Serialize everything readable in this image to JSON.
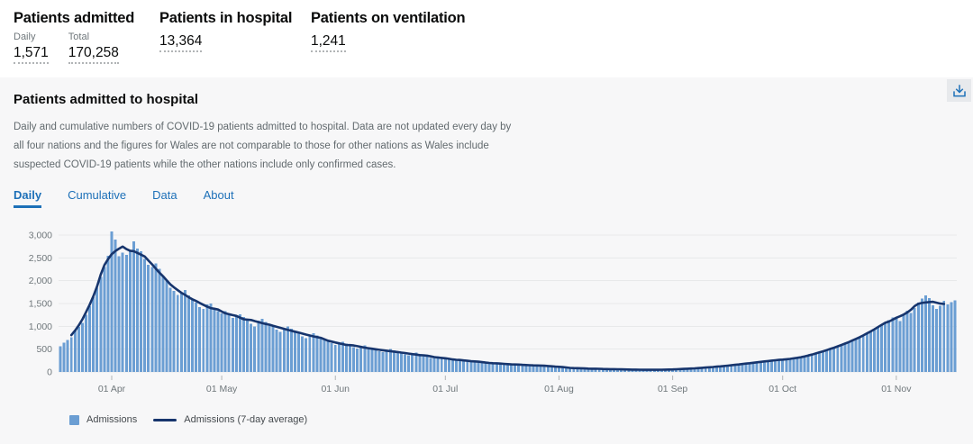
{
  "summary": {
    "stats": [
      {
        "title": "Patients admitted",
        "items": [
          {
            "label": "Daily",
            "value": "1,571"
          },
          {
            "label": "Total",
            "value": "170,258"
          }
        ]
      },
      {
        "title": "Patients in hospital",
        "items": [
          {
            "label": "",
            "value": "13,364"
          }
        ]
      },
      {
        "title": "Patients on ventilation",
        "items": [
          {
            "label": "",
            "value": "1,241"
          }
        ]
      }
    ]
  },
  "card": {
    "title": "Patients admitted to hospital",
    "description": "Daily and cumulative numbers of COVID-19 patients admitted to hospital. Data are not updated every day by all four nations and the figures for Wales are not comparable to those for other nations as Wales include suspected COVID-19 patients while the other nations include only confirmed cases.",
    "tabs": [
      {
        "label": "Daily",
        "active": true
      },
      {
        "label": "Cumulative",
        "active": false
      },
      {
        "label": "Data",
        "active": false
      },
      {
        "label": "About",
        "active": false
      }
    ],
    "download_icon": "download-icon"
  },
  "colors": {
    "accent_blue": "#1d70b8",
    "bar": "#6b9ed3",
    "line": "#17356d",
    "grid": "#e8e9ea",
    "axis_text": "#6f777b",
    "card_bg": "#f7f7f8"
  },
  "chart_data": {
    "type": "bar",
    "title": "Patients admitted to hospital (Daily)",
    "note": "Daily admissions bars from mid-March to mid-November with a 7-day average line overlay; values estimated from gridlines.",
    "legend": [
      "Admissions",
      "Admissions (7-day average)"
    ],
    "ylim": [
      0,
      3000
    ],
    "y_ticks": [
      {
        "value": 0,
        "label": "0"
      },
      {
        "value": 500,
        "label": "500"
      },
      {
        "value": 1000,
        "label": "1,000"
      },
      {
        "value": 1500,
        "label": "1,500"
      },
      {
        "value": 2000,
        "label": "2,000"
      },
      {
        "value": 2500,
        "label": "2,500"
      },
      {
        "value": 3000,
        "label": "3,000"
      }
    ],
    "x_ticks": [
      {
        "index": 14,
        "label": "01 Apr"
      },
      {
        "index": 44,
        "label": "01 May"
      },
      {
        "index": 75,
        "label": "01 Jun"
      },
      {
        "index": 105,
        "label": "01 Jul"
      },
      {
        "index": 136,
        "label": "01 Aug"
      },
      {
        "index": 167,
        "label": "01 Sep"
      },
      {
        "index": 197,
        "label": "01 Oct"
      },
      {
        "index": 228,
        "label": "01 Nov"
      }
    ],
    "series": [
      {
        "name": "Admissions",
        "type": "bar",
        "values": [
          560,
          640,
          700,
          760,
          920,
          990,
          1080,
          1250,
          1440,
          1640,
          1850,
          2080,
          2300,
          2550,
          3080,
          2900,
          2540,
          2620,
          2570,
          2660,
          2860,
          2700,
          2640,
          2480,
          2350,
          2300,
          2380,
          2260,
          2100,
          2000,
          1850,
          1780,
          1690,
          1750,
          1800,
          1680,
          1600,
          1520,
          1420,
          1380,
          1480,
          1500,
          1400,
          1330,
          1280,
          1330,
          1250,
          1180,
          1220,
          1260,
          1200,
          1160,
          1060,
          1000,
          1130,
          1160,
          1100,
          1050,
          1000,
          930,
          880,
          960,
          1000,
          950,
          900,
          850,
          780,
          740,
          820,
          850,
          800,
          760,
          710,
          670,
          630,
          590,
          640,
          660,
          620,
          580,
          545,
          515,
          560,
          580,
          545,
          510,
          480,
          455,
          435,
          480,
          500,
          470,
          445,
          410,
          385,
          365,
          400,
          420,
          390,
          365,
          335,
          310,
          330,
          345,
          320,
          275,
          290,
          280,
          260,
          245,
          250,
          265,
          245,
          230,
          212,
          202,
          215,
          205,
          192,
          180,
          170,
          178,
          186,
          172,
          160,
          152,
          144,
          152,
          160,
          150,
          142,
          134,
          126,
          132,
          140,
          132,
          105,
          95,
          90,
          95,
          88,
          80,
          72,
          76,
          80,
          72,
          68,
          62,
          66,
          70,
          62,
          58,
          52,
          56,
          60,
          56,
          52,
          48,
          45,
          48,
          52,
          48,
          45,
          42,
          46,
          50,
          55,
          55,
          60,
          65,
          62,
          68,
          74,
          80,
          85,
          90,
          96,
          102,
          108,
          115,
          122,
          130,
          138,
          146,
          155,
          164,
          172,
          182,
          192,
          202,
          212,
          222,
          232,
          242,
          250,
          258,
          262,
          268,
          280,
          292,
          285,
          300,
          318,
          338,
          358,
          380,
          402,
          426,
          450,
          476,
          502,
          530,
          558,
          588,
          618,
          650,
          684,
          720,
          758,
          798,
          840,
          884,
          930,
          978,
          1028,
          1080,
          1134,
          1190,
          1200,
          1120,
          1260,
          1340,
          1290,
          1400,
          1520,
          1610,
          1680,
          1620,
          1460,
          1380,
          1450,
          1560,
          1480,
          1530,
          1571
        ]
      },
      {
        "name": "Admissions (7-day average)",
        "type": "line",
        "derived_from": "7-day centered moving average of Admissions"
      }
    ]
  }
}
